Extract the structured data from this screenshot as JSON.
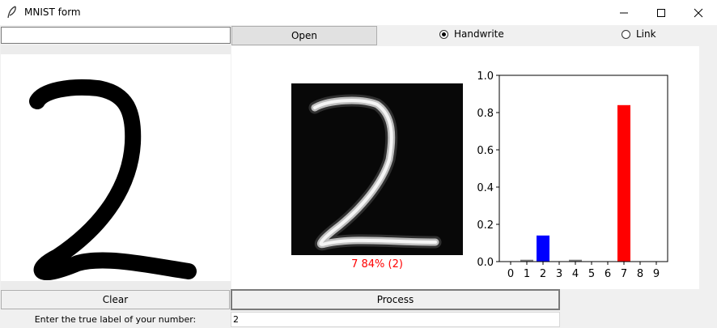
{
  "window": {
    "title": "MNIST form",
    "icon": "feather-icon"
  },
  "toolbar": {
    "path_value": "",
    "open_label": "Open",
    "mode_options": [
      {
        "label": "Handwrite",
        "selected": true
      },
      {
        "label": "Link",
        "selected": false
      }
    ]
  },
  "preview": {
    "caption": "7 84% (2)",
    "caption_color": "#ff0000"
  },
  "chart_data": {
    "type": "bar",
    "categories": [
      "0",
      "1",
      "2",
      "3",
      "4",
      "5",
      "6",
      "7",
      "8",
      "9"
    ],
    "values": [
      0.0,
      0.01,
      0.14,
      0.0,
      0.01,
      0.0,
      0.0,
      0.84,
      0.0,
      0.0
    ],
    "colors": [
      "#808080",
      "#808080",
      "#0000ff",
      "#808080",
      "#808080",
      "#808080",
      "#808080",
      "#ff0000",
      "#808080",
      "#808080"
    ],
    "ylim": [
      0,
      1.0
    ],
    "yticks": [
      "0.0",
      "0.2",
      "0.4",
      "0.6",
      "0.8",
      "1.0"
    ],
    "title": "",
    "xlabel": "",
    "ylabel": ""
  },
  "actions": {
    "clear_label": "Clear",
    "process_label": "Process"
  },
  "label_form": {
    "prompt": "Enter the true label of your number:",
    "value": "2"
  }
}
